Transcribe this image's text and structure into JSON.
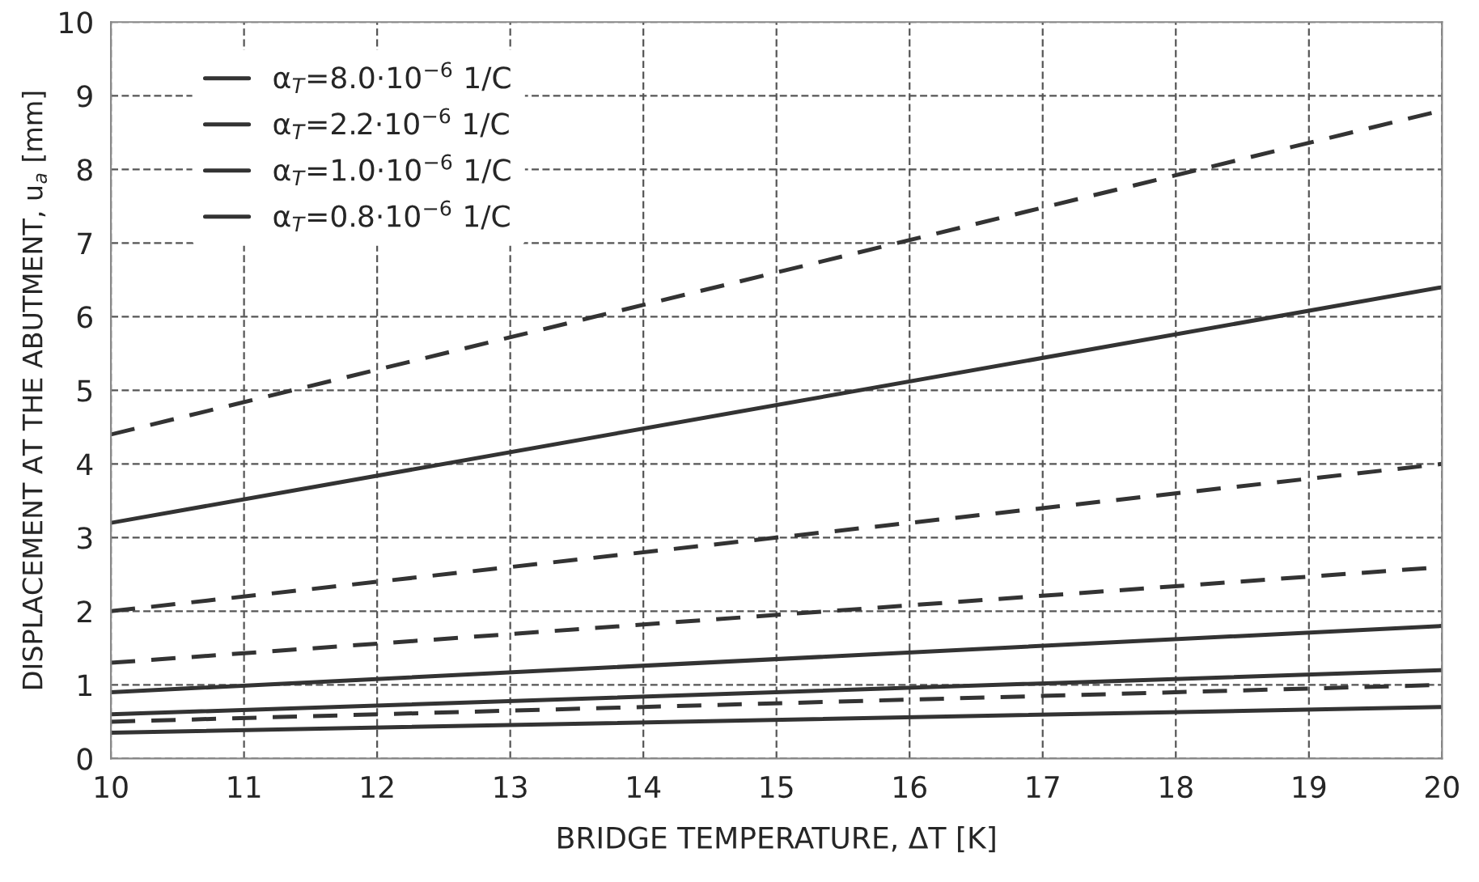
{
  "chart_data": {
    "type": "line",
    "xlabel": "BRIDGE TEMPERATURE, ΔT [K]",
    "ylabel": "DISPLACEMENT AT THE ABUTMENT, u$_{a}$ [mm]",
    "x": [
      10,
      20
    ],
    "series": [
      {
        "name": "α$_{T}$=8.0·10$^{−6}$ 1/C",
        "color": "#333333",
        "values": [
          3.2,
          6.4
        ],
        "line_style": "solid"
      },
      {
        "name": "α$_{T}$=2.2·10$^{−6}$ 1/C",
        "color": "#333333",
        "values": [
          0.9,
          1.8
        ],
        "line_style": "solid"
      },
      {
        "name": "α$_{T}$=1.0·10$^{−6}$ 1/C",
        "color": "#333333",
        "values": [
          0.6,
          1.2
        ],
        "line_style": "solid"
      },
      {
        "name": "α$_{T}$=0.8·10$^{−6}$ 1/C",
        "color": "#333333",
        "values": [
          0.35,
          0.7
        ],
        "line_style": "solid"
      },
      {
        "color": "#333333",
        "values": [
          4.4,
          8.8
        ],
        "line_style": "dashed"
      },
      {
        "color": "#333333",
        "values": [
          2.0,
          4.0
        ],
        "line_style": "dashed"
      },
      {
        "color": "#333333",
        "values": [
          1.3,
          2.6
        ],
        "line_style": "dashed"
      },
      {
        "color": "#333333",
        "values": [
          0.5,
          1.0
        ],
        "line_style": "dashed"
      }
    ],
    "xlim": [
      10,
      20
    ],
    "xticks": [
      10,
      11,
      12,
      13,
      14,
      15,
      16,
      17,
      18,
      19,
      20
    ],
    "ylim": [
      0,
      10
    ],
    "yticks": [
      0,
      1,
      2,
      3,
      4,
      5,
      6,
      7,
      8,
      9,
      10
    ],
    "grid": true,
    "legend": "top left",
    "marker": "none"
  }
}
